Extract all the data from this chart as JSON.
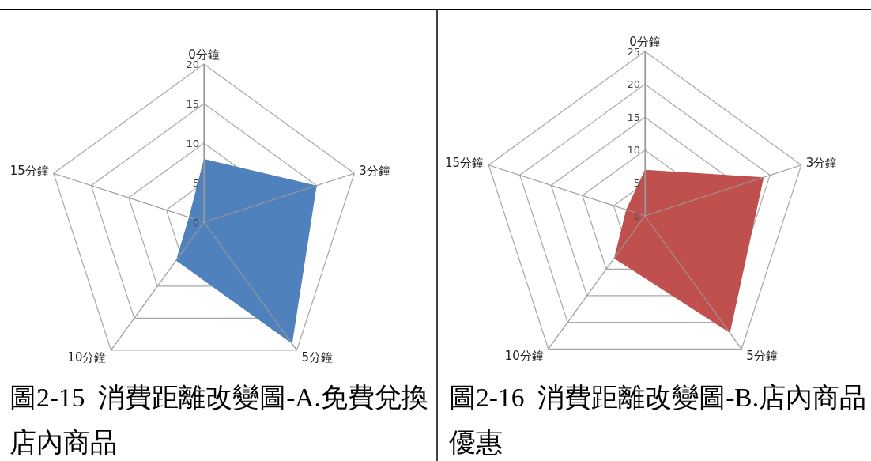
{
  "chart_data": [
    {
      "type": "radar",
      "title": "圖2-15  消費距離改變圖-A.免費兌換店內商品",
      "categories": [
        "0分鐘",
        "3分鐘",
        "5分鐘",
        "10分鐘",
        "15分鐘"
      ],
      "series": [
        {
          "color": "#4f81bd",
          "values": [
            8,
            15,
            19,
            6,
            2
          ]
        }
      ],
      "ylim": [
        0,
        20
      ],
      "yticks": [
        0,
        5,
        10,
        15,
        20
      ],
      "grid": true
    },
    {
      "type": "radar",
      "title": "圖2-16  消費距離改變圖-B.店內商品優惠",
      "categories": [
        "0分鐘",
        "3分鐘",
        "5分鐘",
        "10分鐘",
        "15分鐘"
      ],
      "series": [
        {
          "color": "#c0504d",
          "values": [
            7,
            19,
            22,
            8,
            3
          ]
        }
      ],
      "ylim": [
        0,
        25
      ],
      "yticks": [
        0,
        5,
        10,
        15,
        20,
        25
      ],
      "grid": true
    }
  ]
}
